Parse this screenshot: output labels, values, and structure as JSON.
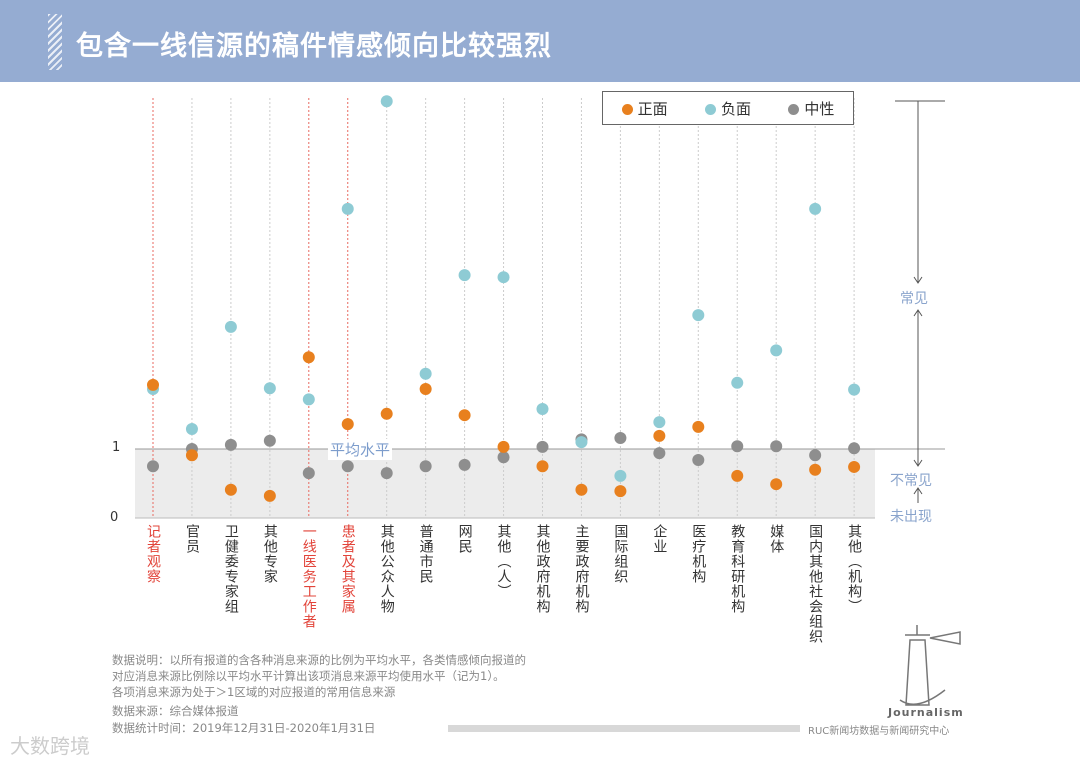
{
  "header": {
    "title": "包含一线信源的稿件情感倾向比较强烈"
  },
  "chart_data": {
    "type": "scatter",
    "title": "包含一线信源的稿件情感倾向比较强烈",
    "categories": [
      "记者观察",
      "官员",
      "卫健委专家组",
      "其他专家",
      "一线医务工作者",
      "患者及其家属",
      "其他公众人物",
      "普通市民",
      "网民",
      "其他（人）",
      "其他政府机构",
      "主要政府机构",
      "国际组织",
      "企业",
      "医疗机构",
      "教育科研机构",
      "媒体",
      "国内其他社会组织",
      "其他（机构）"
    ],
    "highlighted": [
      "记者观察",
      "一线医务工作者",
      "患者及其家属"
    ],
    "series": [
      {
        "name": "正面",
        "color": "#e8801e",
        "values": [
          1.93,
          0.91,
          0.41,
          0.32,
          2.33,
          1.36,
          1.51,
          1.87,
          1.49,
          1.03,
          0.75,
          0.41,
          0.39,
          1.19,
          1.32,
          0.61,
          0.49,
          0.7,
          0.74
        ]
      },
      {
        "name": "负面",
        "color": "#8ecbd4",
        "values": [
          1.87,
          1.29,
          2.77,
          1.88,
          1.72,
          4.48,
          6.04,
          2.09,
          3.52,
          3.49,
          1.58,
          1.1,
          0.61,
          1.39,
          2.94,
          1.96,
          2.43,
          4.48,
          1.86
        ]
      },
      {
        "name": "中性",
        "color": "#8e8e8e",
        "values": [
          0.75,
          1.0,
          1.06,
          1.12,
          0.65,
          0.75,
          0.65,
          0.75,
          0.77,
          0.88,
          1.03,
          1.14,
          1.16,
          0.94,
          0.84,
          1.04,
          1.04,
          0.91,
          1.01
        ]
      }
    ],
    "yticks": [
      "0",
      "1"
    ],
    "ylim": [
      0,
      6.1
    ],
    "average_label": "平均水平",
    "legend_position": "top-right",
    "annotations": {
      "common": "常见",
      "uncommon": "不常见",
      "absent": "未出现"
    }
  },
  "notes": [
    "数据说明：以所有报道的含各种消息来源的比例为平均水平，各类情感倾向报道的",
    "对应消息来源比例除以平均水平计算出该项消息来源平均使用水平（记为1）。",
    "各项消息来源为处于＞1区域的对应报道的常用信息来源"
  ],
  "source": "数据来源：综合媒体报道",
  "period": "数据统计时间：2019年12月31日-2020年1月31日",
  "logo_text": "Journalism",
  "credit": "RUC新闻坊数据与新闻研究中心",
  "watermark": "大数跨境"
}
